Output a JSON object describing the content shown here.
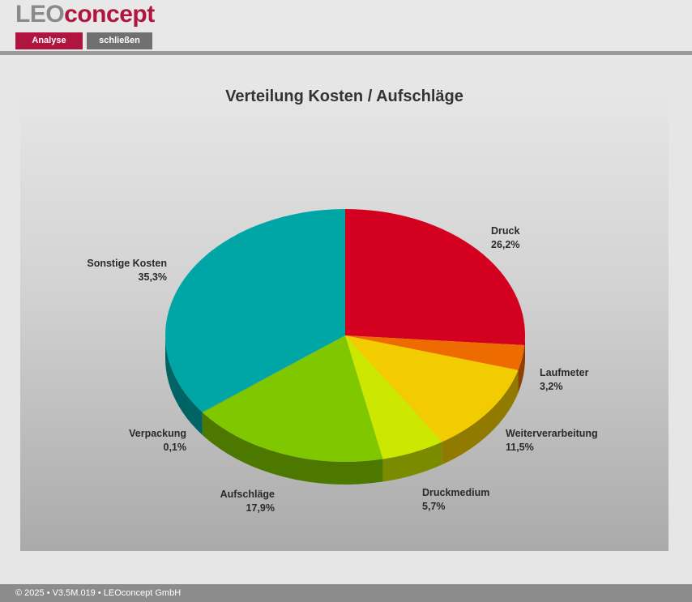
{
  "header": {
    "logo_part1": "LEO",
    "logo_part2": "concept",
    "buttons": {
      "analyse": "Analyse",
      "close": "schließen"
    }
  },
  "footer": {
    "text": "© 2025 • V3.5M.019 • LEOconcept GmbH"
  },
  "colors": {
    "accent": "#b0153f",
    "button_gray": "#707070"
  },
  "chart_data": {
    "type": "pie",
    "title": "Verteilung Kosten / Aufschläge",
    "slices": [
      {
        "name": "Druck",
        "label": "26,2%",
        "value": 26.2,
        "color": "#d4001f",
        "label_pos": "right-top"
      },
      {
        "name": "Laufmeter",
        "label": "3,2%",
        "value": 3.2,
        "color": "#ee6b00",
        "label_pos": "right"
      },
      {
        "name": "Weiterverarbeitung",
        "label": "11,5%",
        "value": 11.5,
        "color": "#f2cb00",
        "label_pos": "right-bottom"
      },
      {
        "name": "Druckmedium",
        "label": "5,7%",
        "value": 5.7,
        "color": "#cde800",
        "label_pos": "bottom-right"
      },
      {
        "name": "Aufschläge",
        "label": "17,9%",
        "value": 17.9,
        "color": "#7fc800",
        "label_pos": "bottom-left"
      },
      {
        "name": "Verpackung",
        "label": "0,1%",
        "value": 0.1,
        "color": "#2aa56a",
        "label_pos": "left-bottom"
      },
      {
        "name": "Sonstige Kosten",
        "label": "35,3%",
        "value": 35.3,
        "color": "#00a6a6",
        "label_pos": "left-top"
      }
    ],
    "start": "12 o'clock",
    "direction": "clockwise",
    "style": "3d"
  }
}
